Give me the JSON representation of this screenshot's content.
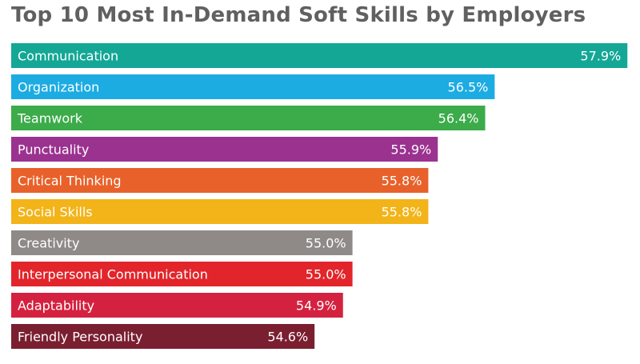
{
  "chart_data": {
    "type": "bar",
    "orientation": "horizontal",
    "title": "Top 10 Most In-Demand Soft Skills by Employers",
    "categories": [
      "Communication",
      "Organization",
      "Teamwork",
      "Punctuality",
      "Critical Thinking",
      "Social Skills",
      "Creativity",
      "Interpersonal Communication",
      "Adaptability",
      "Friendly Personality"
    ],
    "values": [
      57.9,
      56.5,
      56.4,
      55.9,
      55.8,
      55.8,
      55.0,
      55.0,
      54.9,
      54.6
    ],
    "value_labels": [
      "57.9%",
      "56.5%",
      "56.4%",
      "55.9%",
      "55.8%",
      "55.8%",
      "55.0%",
      "55.0%",
      "54.9%",
      "54.6%"
    ],
    "colors": [
      "#14a796",
      "#1cace2",
      "#3cab4a",
      "#9b3290",
      "#e8612a",
      "#f2b419",
      "#8f8a87",
      "#e2252b",
      "#d4213f",
      "#7a1f30"
    ],
    "unit": "%",
    "xlabel": "",
    "ylabel": "",
    "grid": false,
    "legend": "none"
  }
}
